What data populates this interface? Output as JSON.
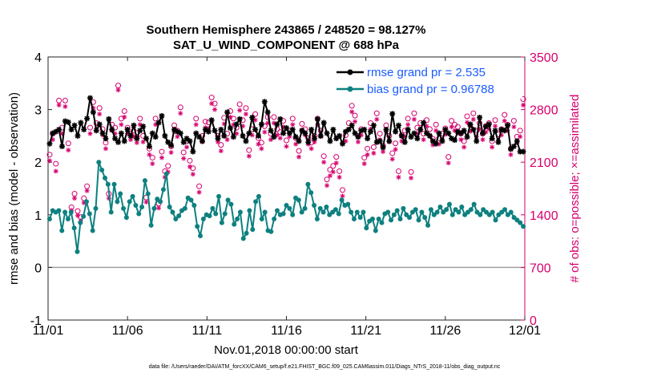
{
  "chart_data": {
    "type": "line",
    "title": "Southern Hemisphere 243865 / 248520 = 98.127%",
    "subtitle": "SAT_U_WIND_COMPONENT @ 688 hPa",
    "xlabel": "Nov.01,2018 00:00:00 start",
    "ylabel_left": "rmse and bias (model - observation)",
    "ylabel_right": "# of obs: o=possible; ×=assimilated",
    "ylim_left": [
      -1,
      4
    ],
    "ylim_right": [
      0,
      3500
    ],
    "yticks_left": [
      "-1",
      "0",
      "1",
      "2",
      "3",
      "4"
    ],
    "yticks_right": [
      "0",
      "700",
      "1400",
      "2100",
      "2800",
      "3500"
    ],
    "xticks": [
      "11/01",
      "11/06",
      "11/11",
      "11/16",
      "11/21",
      "11/26",
      "12/01"
    ],
    "xrange_days": [
      0,
      30
    ],
    "footnote": "data file: /Users/raeder/DAI/ATM_forcXX/CAM6_setup/f.e21.FHIST_BGC.f09_025.CAM6assim.011/Diags_NTrS_2018-11/obs_diag_output.nc",
    "legend": [
      {
        "label": "rmse grand pr = 2.535",
        "color": "#000000"
      },
      {
        "label": "bias grand pr = 0.96788",
        "color": "#0e8080"
      }
    ],
    "series": [
      {
        "name": "rmse",
        "color": "#000000",
        "values": [
          2.35,
          2.55,
          2.58,
          2.62,
          2.3,
          2.78,
          2.76,
          2.62,
          2.7,
          2.5,
          2.75,
          2.62,
          2.83,
          3.22,
          2.95,
          2.6,
          2.72,
          2.55,
          2.45,
          2.82,
          2.62,
          2.45,
          2.38,
          2.55,
          2.4,
          2.62,
          2.5,
          2.7,
          2.45,
          2.6,
          2.68,
          2.45,
          2.3,
          2.55,
          2.48,
          2.75,
          2.88,
          2.5,
          2.38,
          2.32,
          2.62,
          2.58,
          2.55,
          2.38,
          2.45,
          2.4,
          2.2,
          2.55,
          2.48,
          2.4,
          2.62,
          2.58,
          2.8,
          2.6,
          2.45,
          2.62,
          2.5,
          2.95,
          2.65,
          2.48,
          2.72,
          2.82,
          2.5,
          2.4,
          2.55,
          2.85,
          2.62,
          2.5,
          2.72,
          3.15,
          2.95,
          2.6,
          2.48,
          2.72,
          2.82,
          2.55,
          2.65,
          2.55,
          2.62,
          2.48,
          2.4,
          2.6,
          2.55,
          2.38,
          2.62,
          2.45,
          2.82,
          2.5,
          2.75,
          2.55,
          2.4,
          2.62,
          2.45,
          2.5,
          2.35,
          2.58,
          2.62,
          2.7,
          2.55,
          2.48,
          2.6,
          2.62,
          2.45,
          2.58,
          2.7,
          2.38,
          2.4,
          2.28,
          2.62,
          2.4,
          2.92,
          2.58,
          2.7,
          2.5,
          2.38,
          2.62,
          2.48,
          2.55,
          2.45,
          2.62,
          2.75,
          2.55,
          2.5,
          2.4,
          2.35,
          2.55,
          2.4,
          2.62,
          2.55,
          2.45,
          2.42,
          2.58,
          2.55,
          2.6,
          2.48,
          2.72,
          2.62,
          2.4,
          2.85,
          2.55,
          2.68,
          2.72,
          2.45,
          2.6,
          2.38,
          2.62,
          2.6,
          2.7,
          2.25,
          2.3,
          2.4,
          2.2,
          2.2
        ]
      },
      {
        "name": "bias",
        "color": "#0e8080",
        "values": [
          0.92,
          1.08,
          1.05,
          1.08,
          0.7,
          1.05,
          0.92,
          1.05,
          0.75,
          0.3,
          0.85,
          0.97,
          1.25,
          1.02,
          0.7,
          1.12,
          2.0,
          1.85,
          1.7,
          1.58,
          1.05,
          1.58,
          1.25,
          1.4,
          1.12,
          0.95,
          1.25,
          1.35,
          1.18,
          1.02,
          1.15,
          1.65,
          1.4,
          0.8,
          1.12,
          1.3,
          1.25,
          1.48,
          1.78,
          1.15,
          1.05,
          0.92,
          0.98,
          1.08,
          1.12,
          1.32,
          1.28,
          1.18,
          0.78,
          0.6,
          0.92,
          1.0,
          0.98,
          1.12,
          1.02,
          1.35,
          0.85,
          1.02,
          1.28,
          1.2,
          0.82,
          0.92,
          1.05,
          0.55,
          0.65,
          1.08,
          0.72,
          1.25,
          1.35,
          0.92,
          1.05,
          0.7,
          0.68,
          0.92,
          1.08,
          1.0,
          1.02,
          1.18,
          1.12,
          1.0,
          1.32,
          1.28,
          1.05,
          1.12,
          1.58,
          1.42,
          1.18,
          0.92,
          1.12,
          1.05,
          1.15,
          1.0,
          1.05,
          1.1,
          1.02,
          1.28,
          1.18,
          1.2,
          1.05,
          0.92,
          1.05,
          0.95,
          1.05,
          0.75,
          0.88,
          0.92,
          0.7,
          0.92,
          0.85,
          1.02,
          1.05,
          0.9,
          1.0,
          1.08,
          0.92,
          1.12,
          1.0,
          0.95,
          1.05,
          1.1,
          0.9,
          1.05,
          0.95,
          0.8,
          1.1,
          1.0,
          1.05,
          1.15,
          1.05,
          1.1,
          1.2,
          1.0,
          1.1,
          1.05,
          1.15,
          1.0,
          1.05,
          1.1,
          1.2,
          1.05,
          1.0,
          1.1,
          1.05,
          1.0,
          1.05,
          0.9,
          1.0,
          1.05,
          1.1,
          1.0,
          1.05,
          0.95,
          0.9,
          0.85,
          0.78
        ]
      },
      {
        "name": "obs possible",
        "color": "#d6006e",
        "marker": "o",
        "values": [
          2200,
          2480,
          2080,
          2920,
          2560,
          2920,
          2350,
          1500,
          1680,
          1450,
          1370,
          1620,
          1780,
          2560,
          2900,
          2620,
          2820,
          2540,
          2360,
          1680,
          2600,
          2560,
          3120,
          2680,
          2780,
          2560,
          2480,
          2520,
          2440,
          2680,
          2450,
          1630,
          2280,
          2160,
          2680,
          1550,
          2240,
          1980,
          2050,
          2310,
          2590,
          2520,
          2830,
          2230,
          2380,
          2120,
          2020,
          2680,
          1780,
          2450,
          2640,
          2630,
          2960,
          2880,
          2450,
          2330,
          2690,
          2480,
          2780,
          2680,
          2560,
          2870,
          2660,
          2820,
          2260,
          2540,
          2740,
          2420,
          2360,
          2580,
          2700,
          2480,
          2700,
          2540,
          2500,
          2650,
          2390,
          2520,
          2680,
          2420,
          2250,
          2610,
          2540,
          2420,
          2360,
          2450,
          2680,
          2520,
          2180,
          1870,
          2000,
          2050,
          2170,
          1980,
          1730,
          2460,
          2620,
          2850,
          2720,
          2450,
          2540,
          2160,
          2280,
          2620,
          2300,
          2750,
          2480,
          2320,
          2590,
          2450,
          2220,
          2350,
          1980,
          2460,
          2520,
          2680,
          1970,
          2750,
          2560,
          2620,
          2480,
          2660,
          2540,
          2410,
          2600,
          2420,
          2480,
          2550,
          2170,
          2650,
          2600,
          2570,
          2480,
          2380,
          2710,
          2590,
          2750,
          2520,
          2620,
          2480,
          2580,
          2620,
          2380,
          2660,
          2470,
          2540,
          2730,
          2600,
          2280,
          2650,
          2440,
          2520,
          2940
        ]
      },
      {
        "name": "obs assimilated",
        "color": "#d6006e",
        "marker": "*",
        "values": [
          2120,
          2400,
          1980,
          2860,
          2480,
          2840,
          2260,
          1460,
          1620,
          1390,
          1320,
          1560,
          1720,
          2480,
          2820,
          2540,
          2740,
          2460,
          2280,
          1620,
          2520,
          2480,
          3060,
          2600,
          2700,
          2480,
          2400,
          2440,
          2360,
          2600,
          2370,
          1570,
          2200,
          2080,
          2600,
          1490,
          2160,
          1900,
          1970,
          2230,
          2510,
          2440,
          2750,
          2150,
          2300,
          2040,
          1940,
          2600,
          1700,
          2370,
          2560,
          2550,
          2880,
          2800,
          2370,
          2250,
          2610,
          2400,
          2700,
          2600,
          2480,
          2790,
          2580,
          2740,
          2180,
          2460,
          2660,
          2340,
          2280,
          2500,
          2620,
          2400,
          2620,
          2460,
          2420,
          2570,
          2310,
          2440,
          2600,
          2340,
          2170,
          2530,
          2460,
          2340,
          2280,
          2370,
          2600,
          2440,
          2100,
          1790,
          1920,
          1970,
          2090,
          1900,
          1650,
          2380,
          2540,
          2770,
          2640,
          2370,
          2460,
          2080,
          2200,
          2540,
          2220,
          2670,
          2400,
          2240,
          2510,
          2370,
          2140,
          2270,
          1900,
          2380,
          2440,
          2600,
          1890,
          2670,
          2480,
          2540,
          2400,
          2580,
          2460,
          2330,
          2520,
          2340,
          2400,
          2470,
          2090,
          2570,
          2520,
          2490,
          2400,
          2300,
          2630,
          2510,
          2670,
          2440,
          2540,
          2400,
          2500,
          2540,
          2300,
          2580,
          2390,
          2460,
          2650,
          2520,
          2200,
          2570,
          2360,
          2440,
          2860
        ]
      }
    ]
  }
}
